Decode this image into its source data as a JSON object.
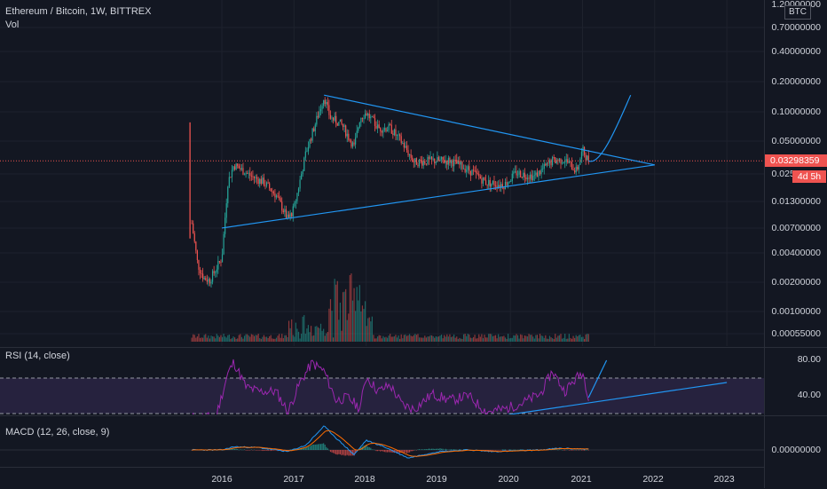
{
  "header": {
    "symbol_line": "Ethereum / Bitcoin, 1W, BITTREX",
    "volume_label": "Vol"
  },
  "indicators": {
    "rsi_label": "RSI (14, close)",
    "macd_label": "MACD (12, 26, close, 9)"
  },
  "price_axis": {
    "currency": "BTC",
    "ticks": [
      "1.20000000",
      "0.70000000",
      "0.40000000",
      "0.20000000",
      "0.10000000",
      "0.05000000",
      "0.02500000",
      "0.01300000",
      "0.00700000",
      "0.00400000",
      "0.00200000",
      "0.00100000",
      "0.00055000"
    ],
    "last_price": "0.03298359",
    "countdown": "4d 5h"
  },
  "rsi_axis": {
    "ticks": [
      "80.00",
      "40.00"
    ]
  },
  "macd_axis": {
    "ticks": [
      "0.00000000"
    ]
  },
  "time_axis": {
    "ticks": [
      "2016",
      "2017",
      "2018",
      "2019",
      "2020",
      "2021",
      "2022",
      "2023"
    ]
  },
  "colors": {
    "background": "#131722",
    "up": "#26a69a",
    "down": "#ef5350",
    "drawing": "#2196f3",
    "rsi_line": "#9c27b0",
    "rsi_band": "#7e57c2",
    "macd_line": "#2196f3",
    "signal_line": "#ff6d00"
  },
  "chart_data": {
    "type": "candlestick",
    "symbol": "ETH/BTC",
    "interval": "1W",
    "exchange": "BITTREX",
    "y_scale": "log",
    "last_price": 0.03298359,
    "x_range": [
      "2015-07",
      "2023-04"
    ],
    "ylim": [
      0.00055,
      1.2
    ],
    "close_path": [
      [
        "2015-08",
        0.0078
      ],
      [
        "2015-09",
        0.003
      ],
      [
        "2015-10",
        0.0022
      ],
      [
        "2015-11",
        0.0021
      ],
      [
        "2016-01",
        0.0035
      ],
      [
        "2016-02",
        0.02
      ],
      [
        "2016-03",
        0.03
      ],
      [
        "2016-06",
        0.023
      ],
      [
        "2016-08",
        0.02
      ],
      [
        "2016-10",
        0.015
      ],
      [
        "2016-12",
        0.0085
      ],
      [
        "2017-01",
        0.011
      ],
      [
        "2017-03",
        0.04
      ],
      [
        "2017-06",
        0.145
      ],
      [
        "2017-07",
        0.09
      ],
      [
        "2017-09",
        0.075
      ],
      [
        "2017-11",
        0.045
      ],
      [
        "2017-12",
        0.09
      ],
      [
        "2018-01",
        0.1
      ],
      [
        "2018-03",
        0.07
      ],
      [
        "2018-05",
        0.07
      ],
      [
        "2018-07",
        0.05
      ],
      [
        "2018-09",
        0.032
      ],
      [
        "2018-12",
        0.033
      ],
      [
        "2019-03",
        0.033
      ],
      [
        "2019-06",
        0.027
      ],
      [
        "2019-09",
        0.02
      ],
      [
        "2019-12",
        0.019
      ],
      [
        "2020-02",
        0.025
      ],
      [
        "2020-05",
        0.023
      ],
      [
        "2020-08",
        0.033
      ],
      [
        "2020-10",
        0.034
      ],
      [
        "2020-12",
        0.026
      ],
      [
        "2021-01",
        0.042
      ],
      [
        "2021-02",
        0.033
      ]
    ],
    "annotations": {
      "triangle_upper": [
        [
          "2017-06",
          0.15
        ],
        [
          "2022-01",
          0.03
        ]
      ],
      "triangle_lower": [
        [
          "2016-01",
          0.007
        ],
        [
          "2022-01",
          0.03
        ]
      ],
      "projection": [
        [
          "2021-02",
          0.033
        ],
        [
          "2021-04",
          0.035
        ],
        [
          "2021-07",
          0.08
        ],
        [
          "2021-09",
          0.15
        ]
      ]
    },
    "rsi": {
      "band": [
        30,
        70
      ],
      "ylim": [
        20,
        90
      ],
      "path": [
        [
          "2015-08",
          25
        ],
        [
          "2015-12",
          26
        ],
        [
          "2016-02",
          75
        ],
        [
          "2016-03",
          88
        ],
        [
          "2016-05",
          60
        ],
        [
          "2016-07",
          55
        ],
        [
          "2016-10",
          55
        ],
        [
          "2016-12",
          32
        ],
        [
          "2017-02",
          65
        ],
        [
          "2017-04",
          87
        ],
        [
          "2017-06",
          78
        ],
        [
          "2017-08",
          45
        ],
        [
          "2017-10",
          48
        ],
        [
          "2017-12",
          36
        ],
        [
          "2018-01",
          72
        ],
        [
          "2018-03",
          55
        ],
        [
          "2018-05",
          62
        ],
        [
          "2018-07",
          40
        ],
        [
          "2018-09",
          35
        ],
        [
          "2018-12",
          52
        ],
        [
          "2019-03",
          45
        ],
        [
          "2019-06",
          50
        ],
        [
          "2019-09",
          32
        ],
        [
          "2019-12",
          35
        ],
        [
          "2020-03",
          42
        ],
        [
          "2020-06",
          52
        ],
        [
          "2020-08",
          78
        ],
        [
          "2020-10",
          55
        ],
        [
          "2020-12",
          70
        ],
        [
          "2021-01",
          77
        ],
        [
          "2021-02",
          50
        ]
      ],
      "annotations": {
        "support_line": [
          [
            "2019-06",
            22
          ],
          [
            "2023-01",
            65
          ]
        ],
        "projection": [
          [
            "2021-02",
            48
          ],
          [
            "2021-05",
            90
          ]
        ]
      }
    },
    "macd": {
      "macd_path": [
        [
          "2015-08",
          0.0
        ],
        [
          "2016-01",
          0.0
        ],
        [
          "2016-03",
          0.004
        ],
        [
          "2016-07",
          0.003
        ],
        [
          "2016-12",
          -0.002
        ],
        [
          "2017-03",
          0.006
        ],
        [
          "2017-06",
          0.03
        ],
        [
          "2017-08",
          0.015
        ],
        [
          "2017-11",
          -0.006
        ],
        [
          "2018-01",
          0.012
        ],
        [
          "2018-04",
          0.004
        ],
        [
          "2018-08",
          -0.01
        ],
        [
          "2019-01",
          -0.002
        ],
        [
          "2019-06",
          0.0
        ],
        [
          "2019-10",
          -0.002
        ],
        [
          "2020-06",
          0.0
        ],
        [
          "2020-09",
          0.002
        ],
        [
          "2021-02",
          0.001
        ]
      ]
    }
  }
}
